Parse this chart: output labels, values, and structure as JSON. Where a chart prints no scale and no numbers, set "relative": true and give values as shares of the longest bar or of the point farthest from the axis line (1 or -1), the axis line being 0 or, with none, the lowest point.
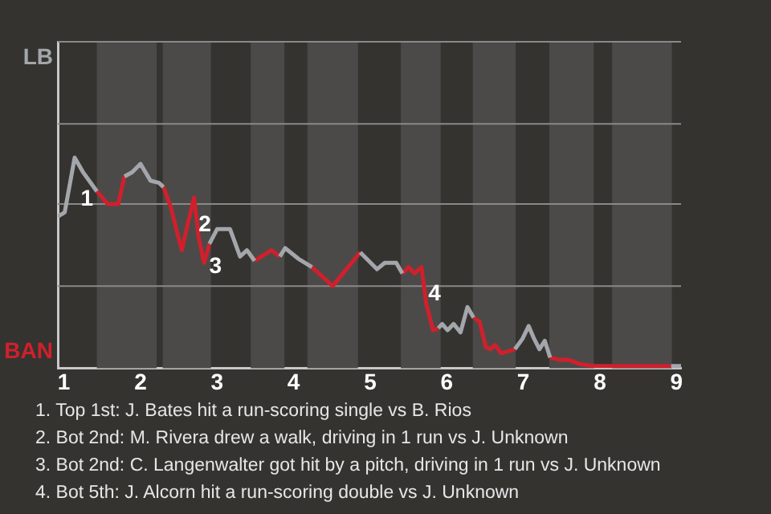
{
  "chart_data": {
    "type": "line",
    "relative": true,
    "x": [
      0.92,
      1.01,
      1.14,
      1.25,
      1.43,
      1.57,
      1.71,
      1.79,
      1.89,
      2,
      2.13,
      2.24,
      2.3,
      2.4,
      2.46,
      2.54,
      2.62,
      2.7,
      2.76,
      2.83,
      2.9,
      3,
      3.17,
      3.3,
      3.39,
      3.49,
      3.71,
      3.82,
      3.89,
      4.06,
      4.24,
      4.51,
      4.87,
      5.09,
      5.19,
      5.34,
      5.42,
      5.5,
      5.58,
      5.67,
      5.73,
      5.82,
      5.89,
      5.94,
      6.01,
      6.09,
      6.18,
      6.27,
      6.35,
      6.43,
      6.51,
      6.57,
      6.63,
      6.71,
      6.8,
      6.89,
      6.99,
      7.07,
      7.14,
      7.21,
      7.28,
      7.35,
      7.47,
      7.59,
      7.73,
      7.91,
      8.18,
      8.93,
      9.06
    ],
    "xlim": [
      0.92,
      9.06
    ],
    "xticks": [
      1,
      2,
      3,
      4,
      5,
      6,
      7,
      8,
      9
    ],
    "series": [
      {
        "name": "LB",
        "color": "#a3a7ab",
        "values": [
          0.72,
          0.74,
          1,
          0.93,
          0.84,
          null,
          null,
          0.91,
          0.93,
          0.97,
          0.89,
          0.88,
          0.86,
          null,
          null,
          null,
          null,
          null,
          null,
          null,
          0.59,
          0.66,
          0.66,
          0.53,
          0.56,
          0.51,
          null,
          0.53,
          0.57,
          0.52,
          0.48,
          null,
          0.55,
          0.47,
          0.5,
          0.5,
          0.45,
          null,
          null,
          null,
          null,
          null,
          0.19,
          0.21,
          0.18,
          0.21,
          0.17,
          0.29,
          0.24,
          null,
          null,
          null,
          null,
          null,
          null,
          0.09,
          0.14,
          0.2,
          0.14,
          0.09,
          0.13,
          0.05,
          null,
          null,
          null,
          null,
          null,
          0.01,
          0.01
        ]
      },
      {
        "name": "BAN",
        "color": "#d0202c",
        "values": [
          null,
          null,
          null,
          null,
          0.84,
          0.78,
          0.78,
          0.91,
          null,
          null,
          null,
          null,
          0.86,
          0.76,
          0.67,
          0.56,
          0.69,
          0.81,
          0.62,
          0.5,
          0.59,
          null,
          null,
          null,
          null,
          0.51,
          0.56,
          0.53,
          null,
          null,
          0.48,
          0.39,
          0.55,
          null,
          null,
          null,
          0.45,
          0.48,
          0.45,
          0.48,
          0.31,
          0.18,
          0.19,
          null,
          null,
          null,
          null,
          null,
          0.24,
          0.22,
          0.1,
          0.09,
          0.11,
          0.07,
          0.08,
          0.09,
          null,
          null,
          null,
          null,
          null,
          0.05,
          0.04,
          0.04,
          0.02,
          0.01,
          0.01,
          0.01,
          null
        ]
      }
    ],
    "bands": [
      {
        "axis": "x",
        "from": 1.43,
        "to": 2.21,
        "color": "#4b4a49"
      },
      {
        "axis": "x",
        "from": 2.29,
        "to": 2.92,
        "color": "#4b4a49"
      },
      {
        "axis": "x",
        "from": 3.44,
        "to": 3.88,
        "color": "#4b4a49"
      },
      {
        "axis": "x",
        "from": 4.18,
        "to": 4.84,
        "color": "#4b4a49"
      },
      {
        "axis": "x",
        "from": 5.4,
        "to": 5.92,
        "color": "#4b4a49"
      },
      {
        "axis": "x",
        "from": 6.34,
        "to": 6.9,
        "color": "#4b4a49"
      },
      {
        "axis": "x",
        "from": 7.34,
        "to": 7.92,
        "color": "#4b4a49"
      },
      {
        "axis": "x",
        "from": 8.16,
        "to": 8.94,
        "color": "#4b4a49"
      }
    ],
    "ref_lines": [
      {
        "axis": "y",
        "value": 0.39,
        "color": "#8a8988"
      },
      {
        "axis": "y",
        "value": 0.78,
        "color": "#8a8988"
      },
      {
        "axis": "y",
        "value": 1.16,
        "color": "#8a8988"
      },
      {
        "axis": "y",
        "value": 1.55,
        "color": "#8a8988"
      }
    ],
    "marker": "none",
    "line_style": "solid",
    "legend": false,
    "annotations": [
      {
        "text": "1",
        "x": 1.3,
        "y": 0.8
      },
      {
        "text": "2",
        "x": 2.84,
        "y": 0.68
      },
      {
        "text": "3",
        "x": 2.98,
        "y": 0.48
      },
      {
        "text": "4",
        "x": 5.84,
        "y": 0.35
      },
      "1. Top 1st: J. Bates hit a run-scoring single vs B. Rios",
      "2. Bot 2nd: M. Rivera drew a walk, driving in 1 run vs J. Unknown",
      "3. Bot 2nd: C. Langenwalter got hit by a pitch, driving in 1 run vs J. Unknown",
      "4. Bot 5th: J. Alcorn hit a run-scoring double vs J. Unknown"
    ]
  }
}
